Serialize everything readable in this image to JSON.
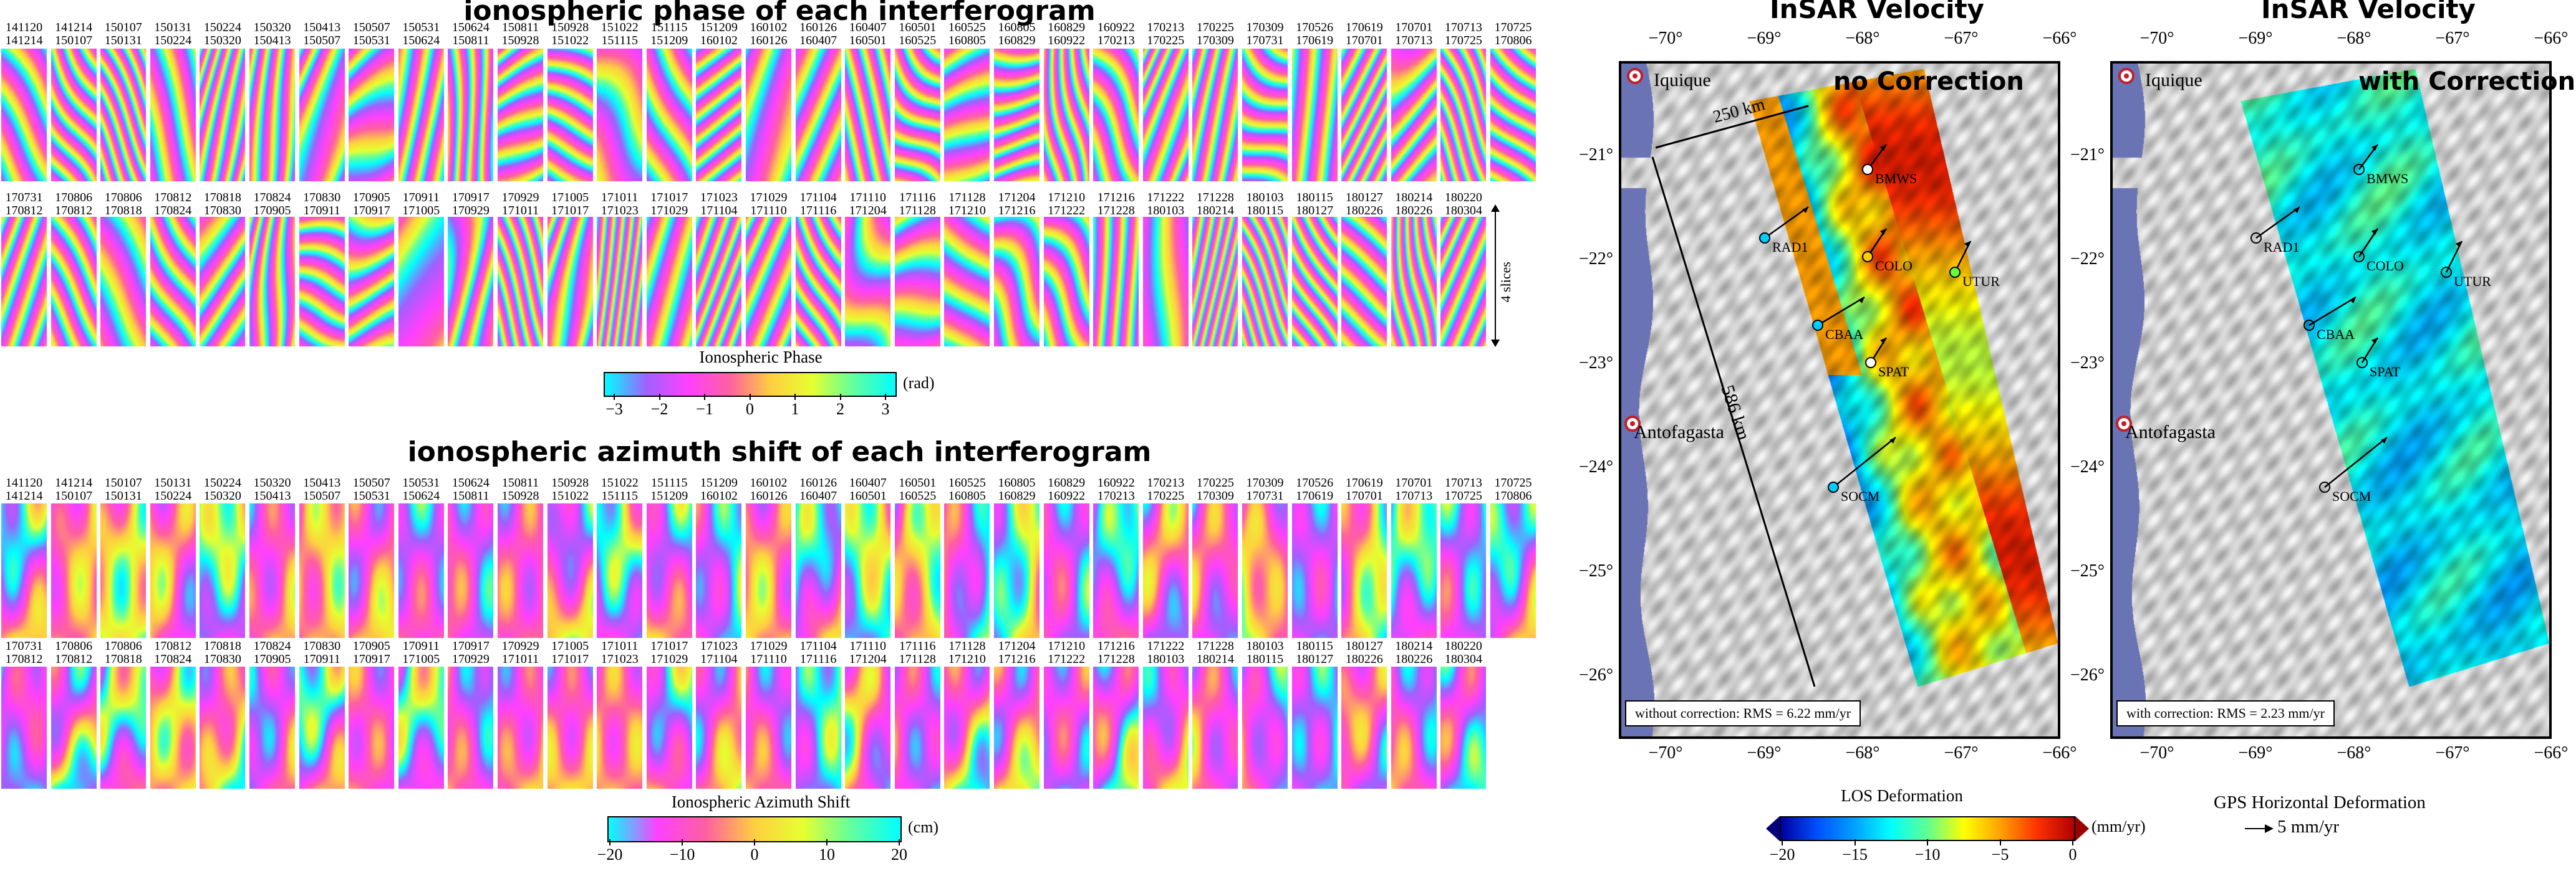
{
  "left_panel": {
    "phase_title": "ionospheric phase of each interferogram",
    "shift_title": "ionospheric azimuth shift of each interferogram",
    "slices_label": "4 slices",
    "row1_dates": [
      [
        "141120",
        "141214"
      ],
      [
        "141214",
        "150107"
      ],
      [
        "150107",
        "150131"
      ],
      [
        "150131",
        "150224"
      ],
      [
        "150224",
        "150320"
      ],
      [
        "150320",
        "150413"
      ],
      [
        "150413",
        "150507"
      ],
      [
        "150507",
        "150531"
      ],
      [
        "150531",
        "150624"
      ],
      [
        "150624",
        "150811"
      ],
      [
        "150811",
        "150928"
      ],
      [
        "150928",
        "151022"
      ],
      [
        "151022",
        "151115"
      ],
      [
        "151115",
        "151209"
      ],
      [
        "151209",
        "160102"
      ],
      [
        "160102",
        "160126"
      ],
      [
        "160126",
        "160407"
      ],
      [
        "160407",
        "160501"
      ],
      [
        "160501",
        "160525"
      ],
      [
        "160525",
        "160805"
      ],
      [
        "160805",
        "160829"
      ],
      [
        "160829",
        "160922"
      ],
      [
        "160922",
        "170213"
      ],
      [
        "170213",
        "170225"
      ],
      [
        "170225",
        "170309"
      ],
      [
        "170309",
        "170731"
      ],
      [
        "170526",
        "170619"
      ],
      [
        "170619",
        "170701"
      ],
      [
        "170701",
        "170713"
      ],
      [
        "170713",
        "170725"
      ],
      [
        "170725",
        "170806"
      ]
    ],
    "row2_dates": [
      [
        "170731",
        "170812"
      ],
      [
        "170806",
        "170812"
      ],
      [
        "170806",
        "170818"
      ],
      [
        "170812",
        "170824"
      ],
      [
        "170818",
        "170830"
      ],
      [
        "170824",
        "170905"
      ],
      [
        "170830",
        "170911"
      ],
      [
        "170905",
        "170917"
      ],
      [
        "170911",
        "171005"
      ],
      [
        "170917",
        "170929"
      ],
      [
        "170929",
        "171011"
      ],
      [
        "171005",
        "171017"
      ],
      [
        "171011",
        "171023"
      ],
      [
        "171017",
        "171029"
      ],
      [
        "171023",
        "171104"
      ],
      [
        "171029",
        "171110"
      ],
      [
        "171104",
        "171116"
      ],
      [
        "171110",
        "171204"
      ],
      [
        "171116",
        "171128"
      ],
      [
        "171128",
        "171210"
      ],
      [
        "171204",
        "171216"
      ],
      [
        "171210",
        "171222"
      ],
      [
        "171216",
        "171228"
      ],
      [
        "171222",
        "180103"
      ],
      [
        "171228",
        "180214"
      ],
      [
        "180103",
        "180115"
      ],
      [
        "180115",
        "180127"
      ],
      [
        "180127",
        "180226"
      ],
      [
        "180214",
        "180226"
      ],
      [
        "180220",
        "180304"
      ]
    ],
    "phase_colorbar": {
      "title": "Ionospheric Phase",
      "unit": "(rad)",
      "ticks": [
        "−3",
        "−2",
        "−1",
        "0",
        "1",
        "2",
        "3"
      ]
    },
    "shift_colorbar": {
      "title": "Ionospheric Azimuth Shift",
      "unit": "(cm)",
      "ticks": [
        "−20",
        "−10",
        "0",
        "10",
        "20"
      ]
    }
  },
  "maps": {
    "left": {
      "title": "InSAR Velocity",
      "label": "no Correction",
      "rms": "without correction:  RMS = 6.22 mm/yr"
    },
    "right": {
      "title": "InSAR Velocity",
      "label": "with Correction",
      "rms": "with correction:  RMS = 2.23 mm/yr"
    },
    "lon_labels": [
      "−70°",
      "−69°",
      "−68°",
      "−67°",
      "−66°"
    ],
    "lat_labels": [
      "−21°",
      "−22°",
      "−23°",
      "−24°",
      "−25°",
      "−26°"
    ],
    "cities": [
      "Iquique",
      "Antofagasta"
    ],
    "stations_left": [
      "BMWS",
      "RAD1",
      "COLO",
      "UTUR",
      "CBAA",
      "SPAT",
      "SOCM"
    ],
    "stations_right": [
      "BMWS",
      "RAD1",
      "COLO",
      "UTUR",
      "CBAA",
      "SPAT",
      "SOCM"
    ],
    "dim_along": "586 km",
    "dim_across": "250 km",
    "los_colorbar": {
      "title": "LOS Deformation",
      "unit": "(mm/yr)",
      "ticks": [
        "−20",
        "−15",
        "−10",
        "−5",
        "0"
      ]
    },
    "gps_legend": {
      "title": "GPS Horizontal Deformation",
      "arrow_label": "5 mm/yr"
    }
  },
  "colors": {
    "ocean": "#6a73b4",
    "city_marker": "#c0202a"
  }
}
